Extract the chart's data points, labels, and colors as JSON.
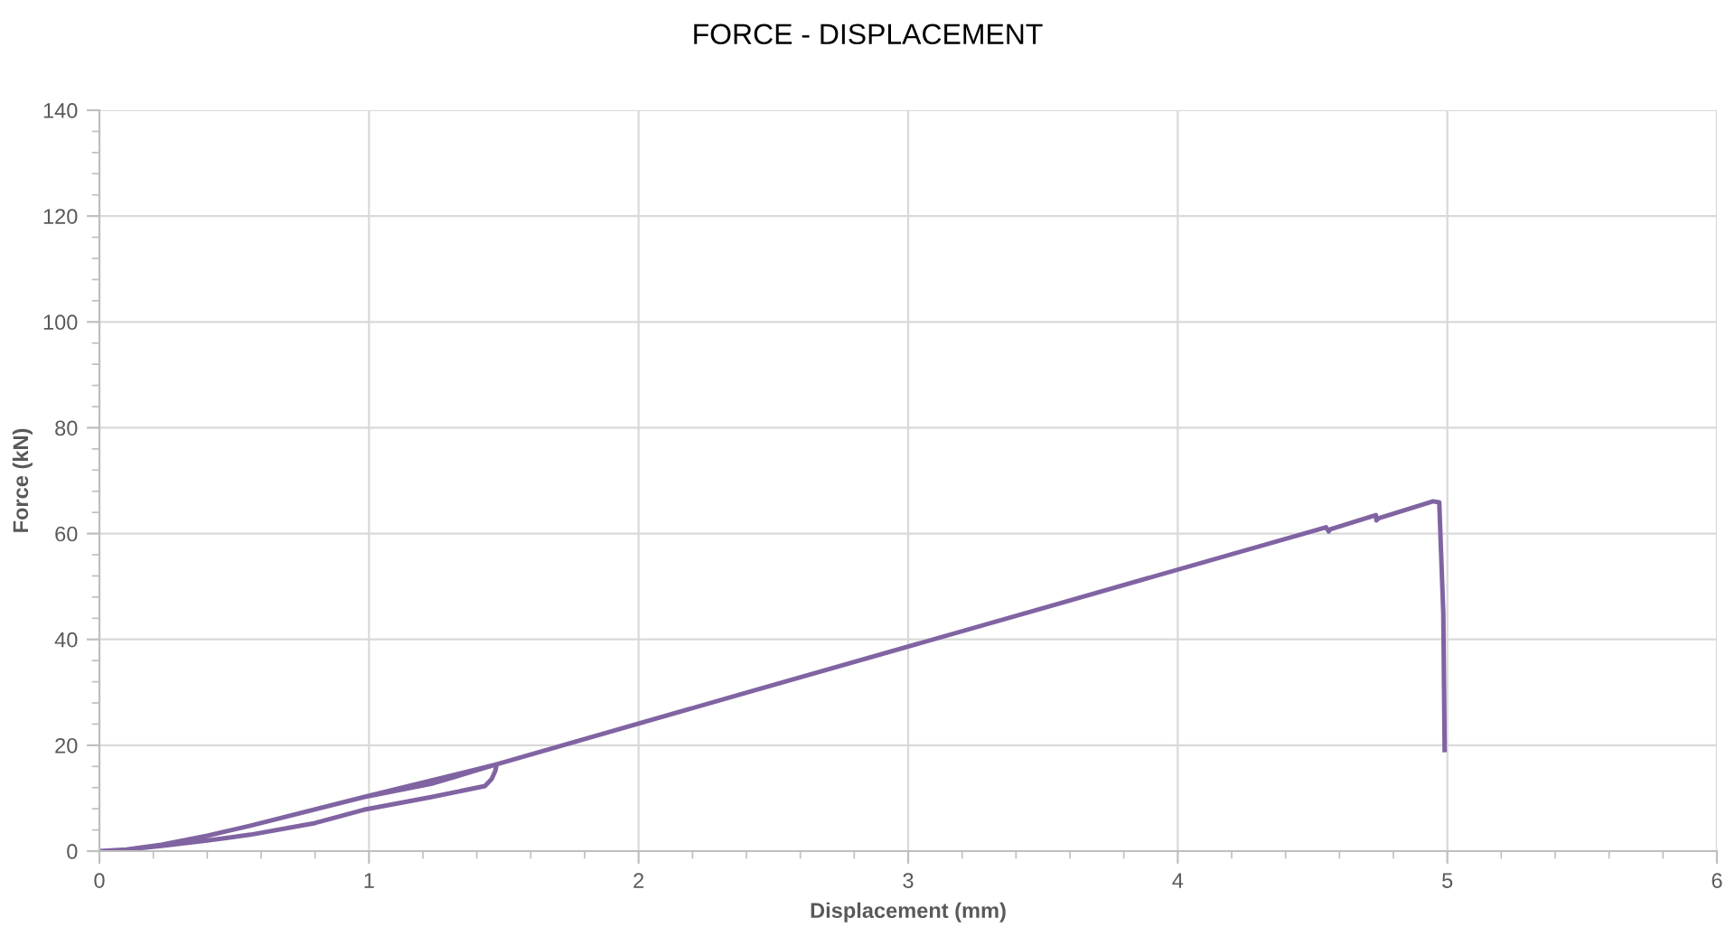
{
  "chart_data": {
    "type": "line",
    "title": "FORCE - DISPLACEMENT",
    "xlabel": "Displacement (mm)",
    "ylabel": "Force (kN)",
    "xlim": [
      0,
      6
    ],
    "xticks": [
      0,
      1,
      2,
      3,
      4,
      5,
      6
    ],
    "ylim": [
      0,
      140
    ],
    "yticks": [
      0,
      20,
      40,
      60,
      80,
      100,
      120,
      140
    ],
    "grid": true,
    "marker": "none",
    "line_style": "solid",
    "series": [
      {
        "color": "#8064a2",
        "x": [
          0,
          0.1,
          0.23,
          0.4,
          0.56,
          0.8,
          0.98,
          1.23,
          1.43,
          1.455,
          1.468,
          1.474,
          1.23,
          0.98,
          0.56,
          0.4,
          0.23,
          0.1,
          0,
          0.1,
          0.23,
          0.4,
          0.56,
          0.98,
          1.474,
          2.5,
          3.5,
          4.55,
          4.56,
          4.565,
          4.735,
          4.737,
          4.745,
          4.947,
          4.97,
          4.985,
          4.99
        ],
        "values": [
          0,
          0.3,
          1.0,
          2.0,
          3.1,
          5.3,
          7.8,
          10.2,
          12.3,
          13.6,
          15.1,
          16.4,
          12.7,
          10.2,
          4.8,
          2.9,
          1.2,
          0.3,
          0,
          0.3,
          1.2,
          2.9,
          4.8,
          10.2,
          16.4,
          31.4,
          45.9,
          61.2,
          60.4,
          60.8,
          63.5,
          62.5,
          62.9,
          66.1,
          65.9,
          45,
          19.1
        ]
      }
    ]
  }
}
